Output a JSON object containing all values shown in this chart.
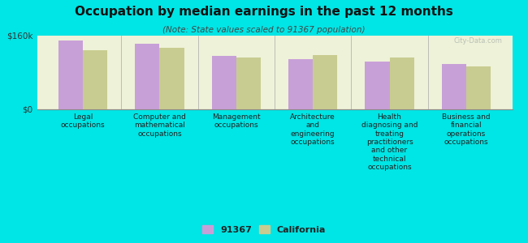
{
  "title": "Occupation by median earnings in the past 12 months",
  "subtitle": "(Note: State values scaled to 91367 population)",
  "background_color": "#00e5e5",
  "plot_bg_color": "#eef2d8",
  "categories": [
    "Legal\noccupations",
    "Computer and\nmathematical\noccupations",
    "Management\noccupations",
    "Architecture\nand\nengineering\noccupations",
    "Health\ndiagnosing and\ntreating\npractitioners\nand other\ntechnical\noccupations",
    "Business and\nfinancial\noperations\noccupations"
  ],
  "values_91367": [
    148000,
    142000,
    115000,
    108000,
    104000,
    98000
  ],
  "values_california": [
    128000,
    133000,
    112000,
    118000,
    112000,
    92000
  ],
  "color_91367": "#c8a0d8",
  "color_california": "#c8cc90",
  "ylim": [
    0,
    160000
  ],
  "ytick_labels": [
    "$0",
    "$160k"
  ],
  "legend_labels": [
    "91367",
    "California"
  ],
  "bar_width": 0.32,
  "watermark": "City-Data.com",
  "title_fontsize": 11,
  "subtitle_fontsize": 7.5,
  "tick_label_fontsize": 6.5,
  "legend_fontsize": 8,
  "ytick_fontsize": 7.5
}
